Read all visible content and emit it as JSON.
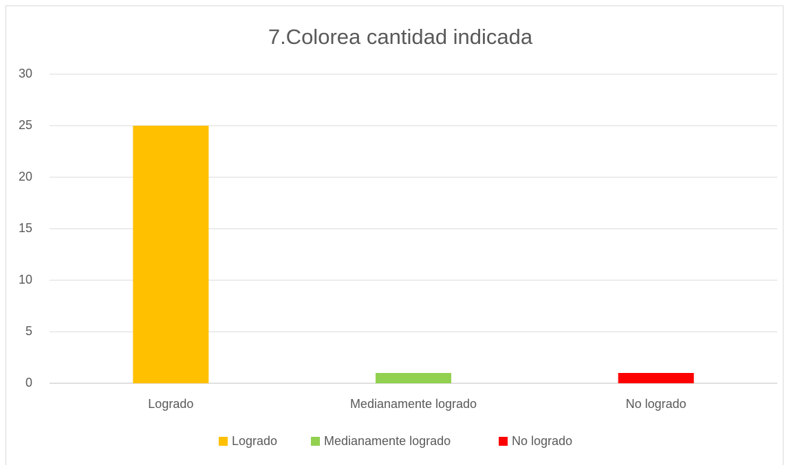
{
  "chart_data": {
    "type": "bar",
    "title": "7.Colorea cantidad indicada",
    "categories": [
      "Logrado",
      "Medianamente logrado",
      "No logrado"
    ],
    "series": [
      {
        "name": "Logrado",
        "color": "#ffc000",
        "values": [
          25,
          null,
          null
        ]
      },
      {
        "name": "Medianamente logrado",
        "color": "#92d050",
        "values": [
          null,
          1,
          null
        ]
      },
      {
        "name": "No logrado",
        "color": "#ff0000",
        "values": [
          null,
          null,
          1
        ]
      }
    ],
    "ylim": [
      0,
      30
    ],
    "yticks": [
      0,
      5,
      10,
      15,
      20,
      25,
      30
    ],
    "grid": true,
    "legend": "bottom"
  }
}
